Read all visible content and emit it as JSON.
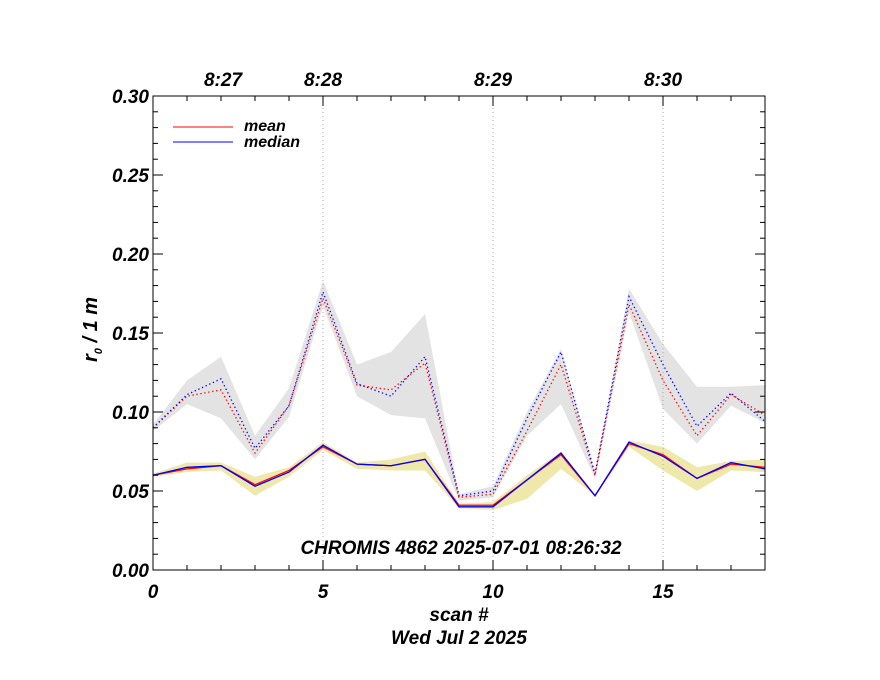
{
  "chart_data": {
    "type": "line",
    "title": "CHROMIS 4862 2025-07-01 08:26:32",
    "xlabel": "scan #",
    "date_label": "Wed Jul  2 2025",
    "ylabel_main": "r",
    "ylabel_sub": "0",
    "ylabel_rest": " / 1 m",
    "xlim": [
      0,
      18
    ],
    "ylim": [
      0,
      0.3
    ],
    "x_ticks": [
      0,
      5,
      10,
      15
    ],
    "x_tick_labels": [
      "0",
      "5",
      "10",
      "15"
    ],
    "y_ticks": [
      0,
      0.05,
      0.1,
      0.15,
      0.2,
      0.25,
      0.3
    ],
    "y_tick_labels": [
      "0.00",
      "0.05",
      "0.10",
      "0.15",
      "0.20",
      "0.25",
      "0.30"
    ],
    "time_ticks": [
      {
        "x": 5,
        "label": "8:28"
      },
      {
        "x": 10,
        "label": "8:29"
      },
      {
        "x": 15,
        "label": "8:30"
      }
    ],
    "time_tick_offscale": {
      "label": "8:27"
    },
    "legend": [
      {
        "name": "mean",
        "color": "#ff0000"
      },
      {
        "name": "median",
        "color": "#0000ff"
      }
    ],
    "legend_position": "top-left",
    "x": [
      0,
      1,
      2,
      3,
      4,
      5,
      6,
      7,
      8,
      9,
      10,
      11,
      12,
      13,
      14,
      15,
      16,
      17,
      18
    ],
    "series": [
      {
        "name": "high band range",
        "style": "band",
        "color": "#e3e3e3",
        "lower": [
          0.088,
          0.105,
          0.096,
          0.07,
          0.097,
          0.167,
          0.11,
          0.098,
          0.096,
          0.044,
          0.046,
          0.085,
          0.105,
          0.058,
          0.163,
          0.102,
          0.08,
          0.104,
          0.093
        ],
        "upper": [
          0.092,
          0.12,
          0.135,
          0.085,
          0.115,
          0.183,
          0.13,
          0.138,
          0.162,
          0.048,
          0.053,
          0.1,
          0.14,
          0.062,
          0.178,
          0.143,
          0.116,
          0.116,
          0.117
        ]
      },
      {
        "name": "high mean",
        "style": "dotted",
        "color": "#ff0000",
        "values": [
          0.09,
          0.11,
          0.114,
          0.074,
          0.104,
          0.172,
          0.117,
          0.114,
          0.131,
          0.046,
          0.048,
          0.088,
          0.13,
          0.06,
          0.168,
          0.12,
          0.085,
          0.111,
          0.098
        ]
      },
      {
        "name": "high median",
        "style": "dotted",
        "color": "#0000ff",
        "values": [
          0.09,
          0.111,
          0.121,
          0.077,
          0.104,
          0.176,
          0.118,
          0.11,
          0.135,
          0.047,
          0.05,
          0.096,
          0.138,
          0.061,
          0.173,
          0.13,
          0.091,
          0.112,
          0.094
        ]
      },
      {
        "name": "low band range",
        "style": "band",
        "color": "#eee8aa",
        "lower": [
          0.059,
          0.062,
          0.063,
          0.047,
          0.059,
          0.076,
          0.064,
          0.063,
          0.063,
          0.039,
          0.038,
          0.045,
          0.064,
          0.047,
          0.078,
          0.063,
          0.05,
          0.063,
          0.062
        ]
      },
      {
        "name": "low mean",
        "style": "solid",
        "color": "#ff0000",
        "values": [
          0.06,
          0.064,
          0.066,
          0.054,
          0.063,
          0.078,
          0.067,
          0.066,
          0.07,
          0.041,
          0.041,
          0.057,
          0.073,
          0.047,
          0.08,
          0.073,
          0.058,
          0.067,
          0.065
        ]
      },
      {
        "name": "low median",
        "style": "solid",
        "color": "#0000ff",
        "values": [
          0.06,
          0.065,
          0.066,
          0.053,
          0.062,
          0.079,
          0.067,
          0.066,
          0.07,
          0.04,
          0.04,
          0.057,
          0.074,
          0.047,
          0.081,
          0.072,
          0.058,
          0.068,
          0.064
        ]
      }
    ],
    "low_band_upper": [
      0.061,
      0.068,
      0.068,
      0.059,
      0.065,
      0.081,
      0.068,
      0.07,
      0.075,
      0.042,
      0.043,
      0.06,
      0.075,
      0.048,
      0.082,
      0.078,
      0.065,
      0.069,
      0.07
    ]
  }
}
